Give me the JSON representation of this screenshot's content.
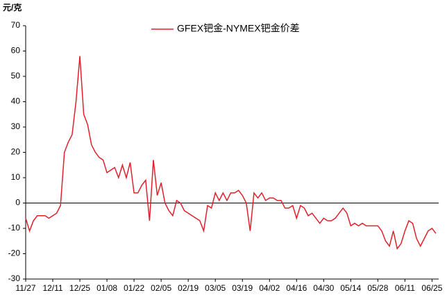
{
  "chart_data": {
    "type": "line",
    "y_label": "元/克",
    "categories": [
      "11/27",
      null,
      null,
      null,
      null,
      null,
      null,
      "12/11",
      null,
      null,
      null,
      null,
      null,
      null,
      "12/25",
      null,
      null,
      null,
      null,
      null,
      null,
      "01/08",
      null,
      null,
      null,
      null,
      null,
      null,
      "01/22",
      null,
      null,
      null,
      null,
      null,
      null,
      "02/05",
      null,
      null,
      null,
      null,
      null,
      null,
      "02/19",
      null,
      null,
      null,
      null,
      null,
      null,
      "03/05",
      null,
      null,
      null,
      null,
      null,
      null,
      "03/19",
      null,
      null,
      null,
      null,
      null,
      null,
      "04/02",
      null,
      null,
      null,
      null,
      null,
      null,
      "04/16",
      null,
      null,
      null,
      null,
      null,
      null,
      "04/30",
      null,
      null,
      null,
      null,
      null,
      null,
      "05/14",
      null,
      null,
      null,
      null,
      null,
      null,
      "05/28",
      null,
      null,
      null,
      null,
      null,
      null,
      "06/11",
      null,
      null,
      null,
      null,
      null,
      null,
      "06/25",
      null
    ],
    "series": [
      {
        "name": "GFEX钯金-NYMEX钯金价差",
        "color": "#e0202a",
        "values": [
          -6,
          -11,
          -7,
          -5,
          -5,
          -5,
          -6,
          -5,
          -4,
          -1,
          20,
          24,
          27,
          40,
          58,
          35,
          31,
          23,
          20,
          18,
          17,
          12,
          13,
          14,
          10,
          15,
          10,
          16,
          4,
          4,
          7,
          9,
          -7,
          17,
          3,
          8,
          0,
          -3,
          -5,
          1,
          0,
          -3,
          -4,
          -5,
          -6,
          -7,
          -11,
          -1,
          -2,
          4,
          1,
          4,
          1,
          4,
          4,
          5,
          3,
          0,
          -11,
          4,
          2,
          4,
          1,
          2,
          2,
          1,
          1,
          -2,
          -2,
          -1,
          -6,
          -1,
          -2,
          -5,
          -4,
          -6,
          -8,
          -6,
          -7,
          -7,
          -6,
          -4,
          -2,
          -4,
          -9,
          -8,
          -9,
          -8,
          -9,
          -9,
          -9,
          -9,
          -11,
          -15,
          -17,
          -11,
          -18,
          -16,
          -11,
          -7,
          -8,
          -14,
          -17,
          -14,
          -11,
          -10,
          -12
        ]
      }
    ],
    "ylim": [
      -30,
      70
    ],
    "yticks": [
      -30,
      -20,
      -10,
      0,
      10,
      20,
      30,
      40,
      50,
      60,
      70
    ],
    "legend": "top"
  }
}
